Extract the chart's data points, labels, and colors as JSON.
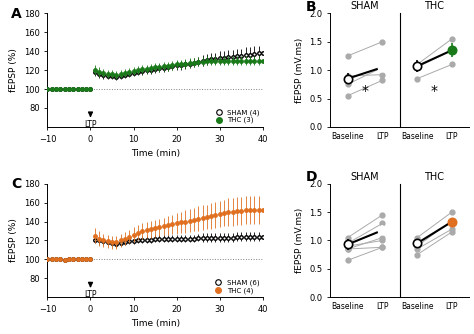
{
  "panel_A": {
    "time": [
      -10,
      -9,
      -8,
      -7,
      -6,
      -5,
      -4,
      -3,
      -2,
      -1,
      0,
      1,
      2,
      3,
      4,
      5,
      6,
      7,
      8,
      9,
      10,
      11,
      12,
      13,
      14,
      15,
      16,
      17,
      18,
      19,
      20,
      21,
      22,
      23,
      24,
      25,
      26,
      27,
      28,
      29,
      30,
      31,
      32,
      33,
      34,
      35,
      36,
      37,
      38,
      39,
      40
    ],
    "sham_mean": [
      100,
      100,
      100,
      100,
      100,
      100,
      100,
      100,
      100,
      100,
      100,
      118,
      116,
      115,
      114,
      114,
      113,
      114,
      115,
      116,
      117,
      118,
      119,
      120,
      120,
      121,
      122,
      122,
      123,
      124,
      125,
      125,
      126,
      127,
      128,
      129,
      130,
      131,
      132,
      132,
      133,
      133,
      134,
      134,
      135,
      135,
      136,
      136,
      137,
      138,
      138
    ],
    "sham_err": [
      2,
      2,
      2,
      2,
      2,
      2,
      2,
      2,
      2,
      2,
      2,
      4,
      4,
      4,
      3,
      3,
      3,
      3,
      3,
      3,
      3,
      3,
      4,
      4,
      4,
      4,
      4,
      4,
      4,
      4,
      5,
      5,
      5,
      5,
      5,
      5,
      6,
      6,
      6,
      6,
      7,
      7,
      7,
      7,
      7,
      7,
      8,
      8,
      8,
      8,
      8
    ],
    "thc_mean": [
      100,
      100,
      100,
      100,
      100,
      100,
      100,
      100,
      100,
      100,
      100,
      120,
      118,
      117,
      116,
      116,
      115,
      116,
      117,
      118,
      119,
      120,
      121,
      121,
      122,
      123,
      123,
      124,
      124,
      125,
      126,
      126,
      127,
      128,
      128,
      129,
      129,
      130,
      130,
      130,
      130,
      130,
      130,
      130,
      130,
      130,
      130,
      130,
      130,
      130,
      130
    ],
    "thc_err": [
      2,
      2,
      2,
      2,
      2,
      2,
      2,
      2,
      2,
      2,
      2,
      5,
      5,
      4,
      4,
      4,
      4,
      4,
      4,
      4,
      4,
      4,
      4,
      4,
      5,
      5,
      5,
      5,
      5,
      5,
      5,
      5,
      5,
      5,
      5,
      5,
      5,
      5,
      5,
      5,
      5,
      5,
      5,
      5,
      5,
      5,
      5,
      5,
      5,
      5,
      5
    ],
    "thc_color": "#1a7a1a",
    "legend_sham": "SHAM (4)",
    "legend_thc": "THC (3)",
    "ylabel": "fEPSP (%)",
    "xlabel": "Time (min)",
    "ylim": [
      60,
      180
    ],
    "yticks": [
      80,
      100,
      120,
      140,
      160,
      180
    ],
    "xlim": [
      -10,
      40
    ],
    "xticks": [
      -10,
      0,
      10,
      20,
      30,
      40
    ],
    "label": "A"
  },
  "panel_B": {
    "sham_baseline_mean": 0.85,
    "sham_ltp_mean": 1.05,
    "sham_baseline_err": 0.1,
    "sham_ltp_err": 0.09,
    "sham_individuals_baseline": [
      0.55,
      0.75,
      1.25,
      0.9
    ],
    "sham_individuals_ltp": [
      0.82,
      1.05,
      1.5,
      0.92
    ],
    "thc_baseline_mean": 1.07,
    "thc_ltp_mean": 1.35,
    "thc_baseline_err": 0.1,
    "thc_ltp_err": 0.12,
    "thc_individuals_baseline": [
      0.85,
      1.1,
      1.05
    ],
    "thc_individuals_ltp": [
      1.1,
      1.55,
      1.35
    ],
    "ylabel": "fEPSP (mV.ms)",
    "ylim": [
      0,
      2
    ],
    "yticks": [
      0,
      0.5,
      1.0,
      1.5,
      2.0
    ],
    "thc_color": "#1a7a1a",
    "label": "B",
    "star_sham_y": 1.82,
    "star_thc_y": 1.82
  },
  "panel_C": {
    "time": [
      -10,
      -9,
      -8,
      -7,
      -6,
      -5,
      -4,
      -3,
      -2,
      -1,
      0,
      1,
      2,
      3,
      4,
      5,
      6,
      7,
      8,
      9,
      10,
      11,
      12,
      13,
      14,
      15,
      16,
      17,
      18,
      19,
      20,
      21,
      22,
      23,
      24,
      25,
      26,
      27,
      28,
      29,
      30,
      31,
      32,
      33,
      34,
      35,
      36,
      37,
      38,
      39,
      40
    ],
    "sham_mean": [
      100,
      100,
      100,
      100,
      99,
      100,
      100,
      100,
      100,
      100,
      100,
      121,
      120,
      119,
      118,
      117,
      116,
      117,
      118,
      119,
      119,
      120,
      121,
      121,
      121,
      122,
      122,
      122,
      122,
      122,
      122,
      122,
      122,
      122,
      122,
      123,
      123,
      123,
      123,
      123,
      123,
      123,
      123,
      123,
      124,
      124,
      124,
      124,
      124,
      124,
      124
    ],
    "sham_err": [
      2,
      2,
      2,
      2,
      2,
      2,
      2,
      2,
      2,
      2,
      2,
      4,
      4,
      4,
      3,
      3,
      3,
      3,
      3,
      3,
      3,
      3,
      4,
      4,
      4,
      4,
      4,
      4,
      4,
      4,
      4,
      4,
      4,
      4,
      4,
      4,
      5,
      5,
      5,
      5,
      5,
      5,
      5,
      5,
      5,
      5,
      5,
      5,
      5,
      5,
      5
    ],
    "thc_mean": [
      100,
      100,
      100,
      100,
      99,
      100,
      100,
      100,
      100,
      100,
      100,
      125,
      122,
      120,
      119,
      118,
      118,
      120,
      122,
      124,
      126,
      128,
      130,
      131,
      132,
      133,
      134,
      135,
      136,
      137,
      138,
      139,
      140,
      141,
      142,
      143,
      144,
      145,
      146,
      147,
      148,
      149,
      150,
      150,
      151,
      151,
      152,
      152,
      152,
      152,
      152
    ],
    "thc_err": [
      2,
      2,
      2,
      2,
      2,
      2,
      2,
      2,
      2,
      2,
      2,
      8,
      8,
      7,
      7,
      7,
      7,
      7,
      7,
      7,
      8,
      8,
      8,
      8,
      9,
      9,
      9,
      9,
      10,
      10,
      11,
      11,
      12,
      12,
      12,
      13,
      13,
      13,
      14,
      14,
      14,
      14,
      15,
      15,
      15,
      15,
      15,
      15,
      15,
      15,
      15
    ],
    "thc_color": "#e07020",
    "legend_sham": "SHAM (6)",
    "legend_thc": "THC (4)",
    "ylabel": "fEPSP (%)",
    "xlabel": "Time (min)",
    "ylim": [
      60,
      180
    ],
    "yticks": [
      80,
      100,
      120,
      140,
      160,
      180
    ],
    "xlim": [
      -10,
      40
    ],
    "xticks": [
      -10,
      0,
      10,
      20,
      30,
      40
    ],
    "label": "C"
  },
  "panel_D": {
    "sham_baseline_mean": 0.93,
    "sham_ltp_mean": 1.18,
    "sham_baseline_err": 0.09,
    "sham_ltp_err": 0.09,
    "sham_individuals_baseline": [
      0.65,
      0.85,
      1.05,
      0.9,
      0.95,
      0.85
    ],
    "sham_individuals_ltp": [
      0.88,
      1.05,
      1.45,
      1.0,
      1.3,
      0.88
    ],
    "thc_baseline_mean": 0.95,
    "thc_ltp_mean": 1.33,
    "thc_baseline_err": 0.07,
    "thc_ltp_err": 0.07,
    "thc_individuals_baseline": [
      0.75,
      0.9,
      1.05,
      0.85
    ],
    "thc_individuals_ltp": [
      1.15,
      1.35,
      1.5,
      1.2
    ],
    "ylabel": "fEPSP (mV.ms)",
    "ylim": [
      0,
      2
    ],
    "yticks": [
      0,
      0.5,
      1.0,
      1.5,
      2.0
    ],
    "thc_color": "#e07020",
    "label": "D",
    "star_sham_y": 1.82,
    "star_thc_y": 1.82
  },
  "bg_color": "white",
  "individual_color": "#aaaaaa",
  "mean_line_color": "black"
}
